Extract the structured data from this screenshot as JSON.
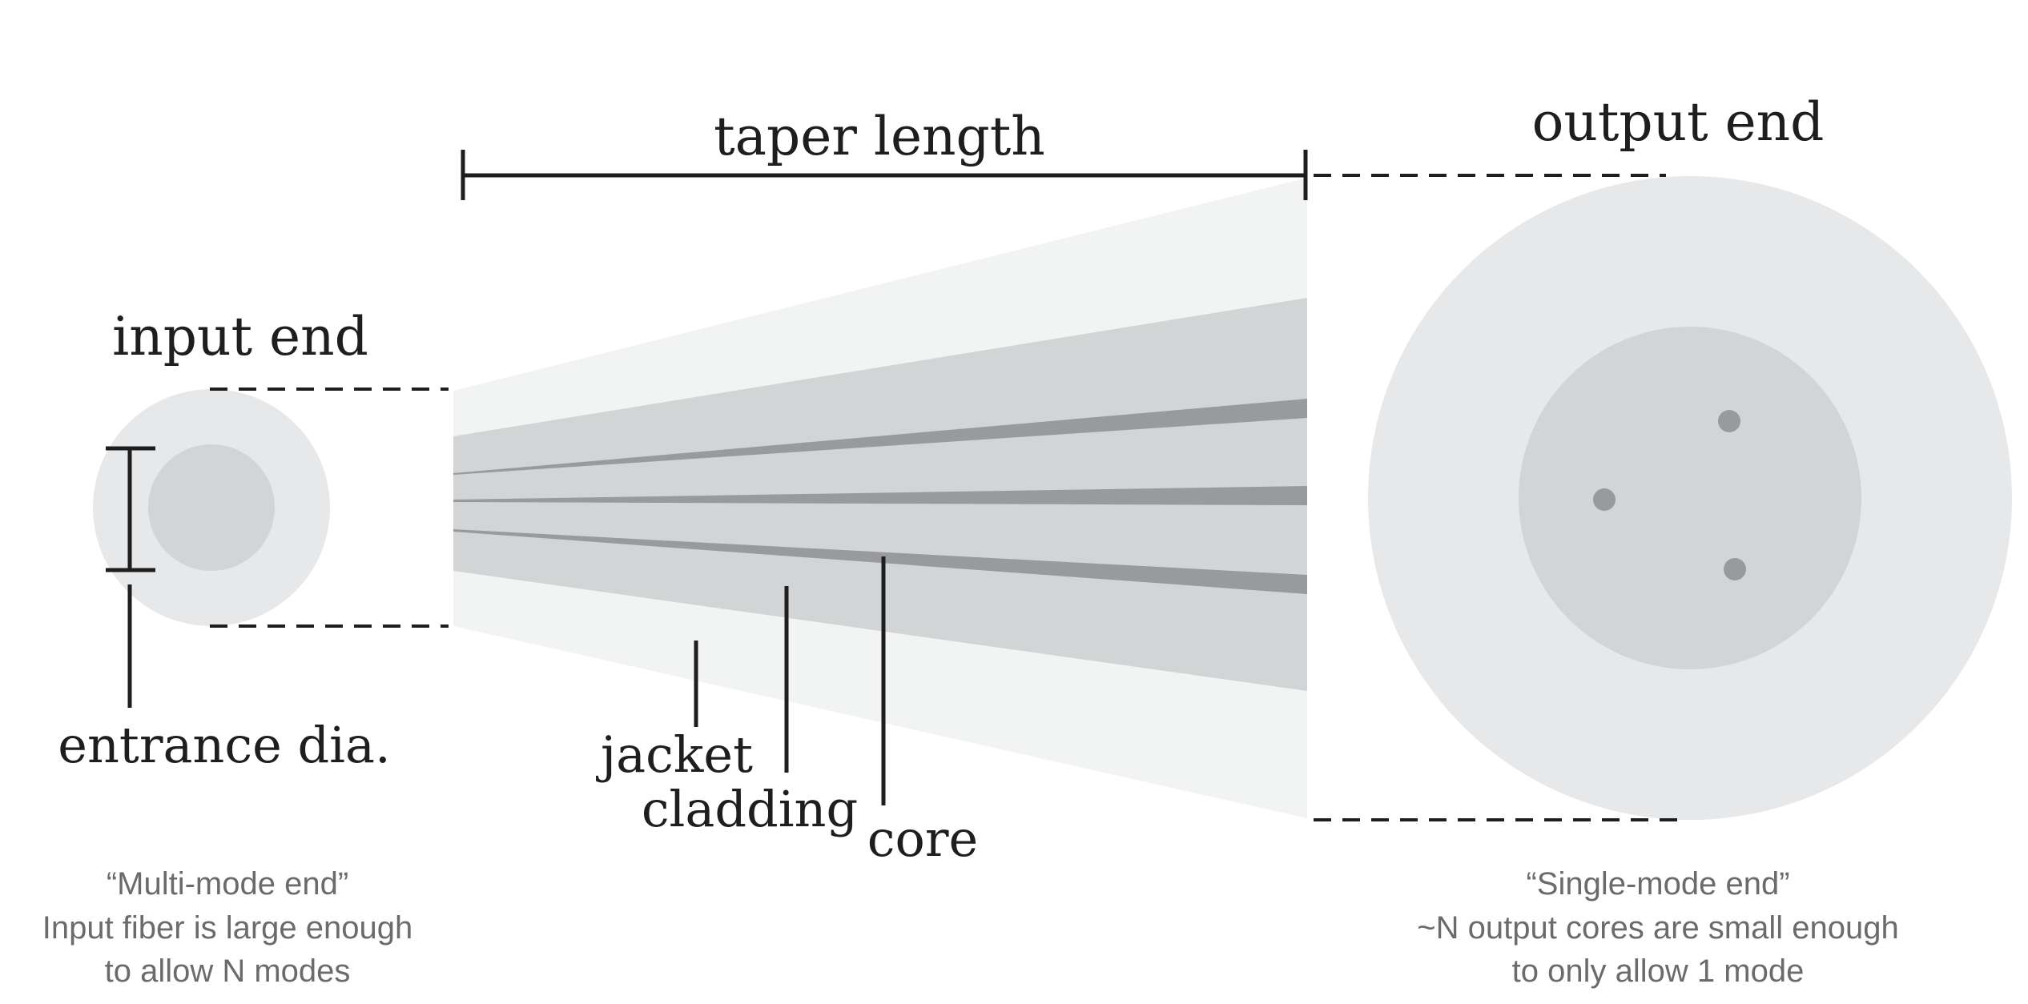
{
  "labels": {
    "taper_length": "taper length",
    "output_end": "output end",
    "input_end": "input end",
    "entrance_dia": "entrance dia.",
    "jacket": "jacket",
    "cladding": "cladding",
    "core": "core"
  },
  "captions": {
    "input": {
      "line1": "“Multi-mode end”",
      "line2": "Input fiber is large enough",
      "line3": "to allow N modes"
    },
    "output": {
      "line1": "“Single-mode end”",
      "line2": "~N output cores are small enough",
      "line3": "to only allow 1 mode"
    }
  },
  "colors": {
    "jacket": "#f2f3f3",
    "cladding": "#d3d4d5",
    "core": "#999a9b",
    "end_outer": "#e7e8e9",
    "end_inner": "#d3d4d5",
    "ink": "#1e1e1e",
    "caption": "#6b6b6b"
  }
}
